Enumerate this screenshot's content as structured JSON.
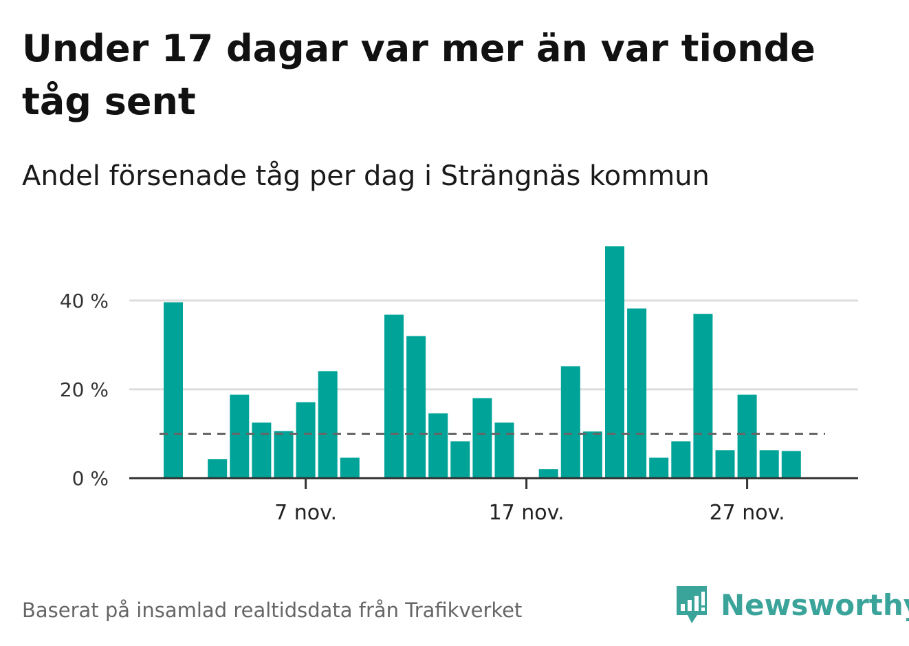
{
  "title": "Under 17 dagar var mer än var tionde tåg sent",
  "subtitle": "Andel försenade tåg per dag i Strängnäs kommun",
  "source": "Baserat på insamlad realtidsdata från Trafikverket",
  "brand": "Newsworthy",
  "colors": {
    "bar": "#00a398",
    "reference": "#666666",
    "grid": "#dddddd",
    "axis": "#333333",
    "brand": "#3aa39a"
  },
  "chart_data": {
    "type": "bar",
    "x_unit": "day of November",
    "x": [
      1,
      2,
      3,
      4,
      5,
      6,
      7,
      8,
      9,
      10,
      11,
      12,
      13,
      14,
      15,
      16,
      17,
      18,
      19,
      20,
      21,
      22,
      23,
      24,
      25,
      26,
      27,
      28,
      29,
      30
    ],
    "values": [
      39.6,
      0,
      4.3,
      18.8,
      12.5,
      10.6,
      17.1,
      24.1,
      4.6,
      0,
      36.8,
      32,
      14.6,
      8.3,
      18,
      12.5,
      0,
      2,
      25.2,
      10.5,
      52.2,
      38.2,
      4.6,
      8.3,
      37,
      6.3,
      18.8,
      6.3,
      6.1,
      null
    ],
    "reference_line": 10,
    "ylim": [
      0,
      55
    ],
    "yticks": [
      0,
      20,
      40
    ],
    "ytick_labels": [
      "0 %",
      "20 %",
      "40 %"
    ],
    "xticks": [
      7,
      17,
      27
    ],
    "xtick_labels": [
      "7 nov.",
      "17 nov.",
      "27 nov."
    ],
    "grid": true
  }
}
